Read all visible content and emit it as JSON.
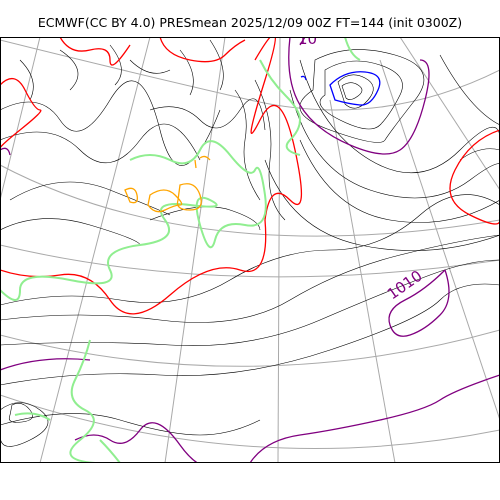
{
  "title": "ECMWF(CC BY 4.0) PRESmean 2025/12/09 00Z FT=144 (init 0300Z)",
  "isobar_labels": {
    "label_1010": "1010",
    "label_top_partial": "10"
  },
  "colors": {
    "isobar_minor": "#000000",
    "isobar_1010": "#800080",
    "isobar_1000": "#ff0000",
    "isobar_low": "#0000ff",
    "coastline": "#90ee90",
    "precip_contour": "#ffa500",
    "graticule": "#a9a9a9"
  }
}
